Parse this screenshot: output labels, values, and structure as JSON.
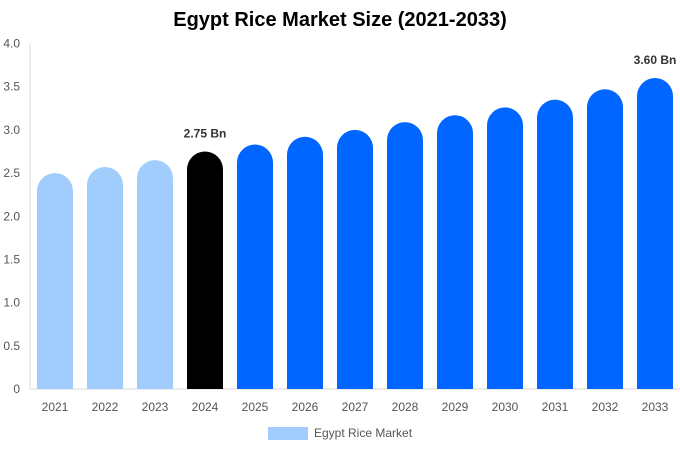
{
  "chart_data": {
    "type": "bar",
    "title": "Egypt Rice Market Size (2021-2033)",
    "categories": [
      "2021",
      "2022",
      "2023",
      "2024",
      "2025",
      "2026",
      "2027",
      "2028",
      "2029",
      "2030",
      "2031",
      "2032",
      "2033"
    ],
    "series": [
      {
        "name": "Egypt Rice Market",
        "values": [
          2.5,
          2.57,
          2.65,
          2.75,
          2.83,
          2.92,
          3.0,
          3.09,
          3.17,
          3.26,
          3.35,
          3.47,
          3.6
        ]
      }
    ],
    "y_ticks": [
      "0",
      "0.5",
      "1.0",
      "1.5",
      "2.0",
      "2.5",
      "3.0",
      "3.5",
      "4.0"
    ],
    "ylim": [
      0,
      4.0
    ],
    "data_labels": [
      {
        "category": "2024",
        "text": "2.75 Bn"
      },
      {
        "category": "2033",
        "text": "3.60 Bn"
      }
    ],
    "grid": false,
    "legend_position": "bottom",
    "colors": {
      "historical": "#a0cdfb",
      "base_year": "#000000",
      "forecast": "#0066ff"
    },
    "color_groups": [
      "historical",
      "historical",
      "historical",
      "base_year",
      "forecast",
      "forecast",
      "forecast",
      "forecast",
      "forecast",
      "forecast",
      "forecast",
      "forecast",
      "forecast"
    ]
  }
}
